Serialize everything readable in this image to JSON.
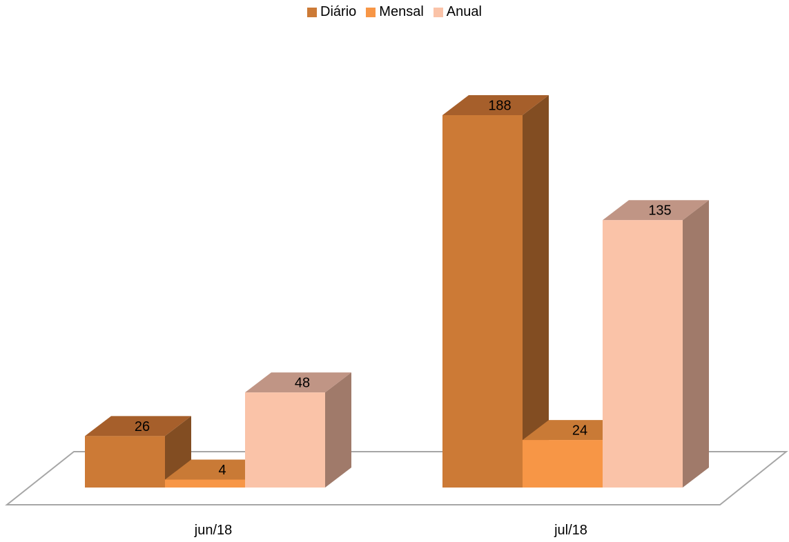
{
  "chart_data": {
    "type": "bar",
    "three_d": true,
    "categories": [
      "jun/18",
      "jul/18"
    ],
    "series": [
      {
        "name": "Diário",
        "values": [
          26,
          188
        ],
        "color": "#CC7A36",
        "side_color": "#824D22",
        "top_color": "#A65F2B"
      },
      {
        "name": "Mensal",
        "values": [
          4,
          24
        ],
        "color": "#F79646",
        "side_color": "#A85F22",
        "top_color": "#C97A36"
      },
      {
        "name": "Anual",
        "values": [
          48,
          135
        ],
        "color": "#FAC3A8",
        "side_color": "#A07A6A",
        "top_color": "#C09585"
      }
    ],
    "ylim": [
      0,
      188
    ],
    "grid": false,
    "legend_position": "top",
    "data_labels": true,
    "floor_color": "#A6A6A6"
  }
}
